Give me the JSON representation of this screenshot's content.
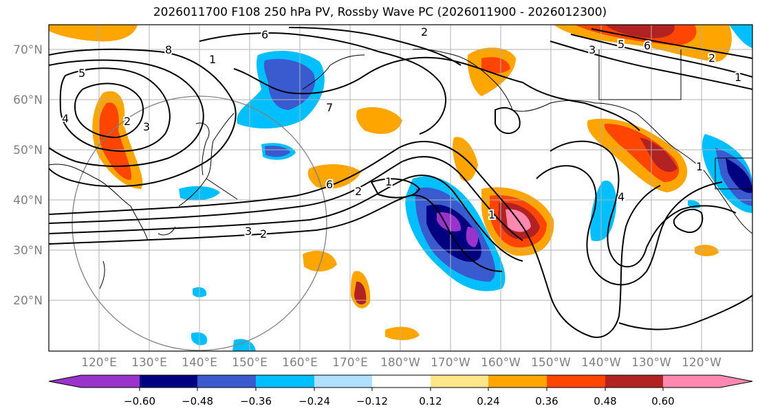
{
  "title": "2026011700 F108 250 hPa PV, Rossby Wave PC (2026011900 - 2026012300)",
  "lat_labels": [
    "70°N",
    "60°N",
    "50°N",
    "40°N",
    "30°N",
    "20°N"
  ],
  "lon_labels": [
    "120°E",
    "130°E",
    "140°E",
    "150°E",
    "160°E",
    "170°E",
    "180°W",
    "170°W",
    "160°W",
    "150°W",
    "140°W",
    "130°W",
    "120°W"
  ],
  "contour_labels": [
    "8",
    "6",
    "5",
    "4",
    "3",
    "2",
    "1",
    "2",
    "7",
    "6",
    "5",
    "3",
    "2",
    "1",
    "3",
    "2",
    "1",
    "6",
    "2",
    "1",
    "4",
    "1"
  ],
  "colorbar": {
    "ticks": [
      "−0.60",
      "−0.48",
      "−0.36",
      "−0.24",
      "−0.12",
      "0.12",
      "0.24",
      "0.36",
      "0.48",
      "0.60"
    ],
    "colors": [
      "#9933cc",
      "#000080",
      "#3a5bd0",
      "#00bfff",
      "#b0e0ff",
      "#ffffff",
      "#ffe68a",
      "#ffa500",
      "#ff4500",
      "#b22222",
      "#ff88b0"
    ]
  }
}
